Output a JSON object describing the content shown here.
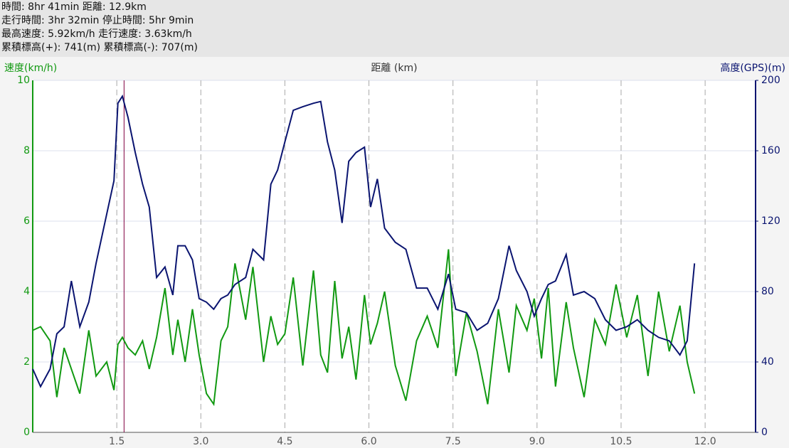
{
  "chart_data": {
    "type": "line",
    "summary": [
      "時間: 8hr 41min 距離: 12.9km",
      "走行時間: 3hr 32min 停止時間: 5hr 9min",
      "最高速度: 5.92km/h 走行速度: 3.63km/h",
      "累積標高(+): 741(m) 累積標高(-): 707(m)"
    ],
    "xlabel": "距離 (km)",
    "ylabel": "速度(km/h)",
    "y2label": "高度(GPS)(m)",
    "xlim": [
      0,
      12.9
    ],
    "xticks": [
      1.5,
      {
        "value": 3,
        "label": "3.0"
      },
      4.5,
      {
        "value": 6,
        "label": "6.0"
      },
      7.5,
      {
        "value": 9,
        "label": "9.0"
      },
      10.5,
      {
        "value": 12,
        "label": "12.0"
      }
    ],
    "ylim": [
      0,
      10
    ],
    "yticks": [
      0,
      2,
      4,
      6,
      8,
      10
    ],
    "y2lim": [
      0,
      200
    ],
    "y2ticks": [
      0,
      40,
      80,
      120,
      160,
      200
    ],
    "grid": true,
    "marker_x": 1.63,
    "marker_color": "#800040",
    "x": [
      0.0,
      0.14,
      0.31,
      0.43,
      0.56,
      0.69,
      0.84,
      1.0,
      1.13,
      1.32,
      1.45,
      1.52,
      1.6,
      1.7,
      1.83,
      1.96,
      2.08,
      2.21,
      2.36,
      2.5,
      2.59,
      2.72,
      2.85,
      2.97,
      3.1,
      3.23,
      3.36,
      3.48,
      3.61,
      3.8,
      3.93,
      4.12,
      4.25,
      4.37,
      4.5,
      4.65,
      4.82,
      5.01,
      5.14,
      5.26,
      5.39,
      5.52,
      5.64,
      5.77,
      5.92,
      6.03,
      6.15,
      6.28,
      6.47,
      6.66,
      6.85,
      7.04,
      7.23,
      7.42,
      7.55,
      7.74,
      7.93,
      8.12,
      8.31,
      8.5,
      8.63,
      8.82,
      8.95,
      9.08,
      9.2,
      9.33,
      9.52,
      9.65,
      9.84,
      10.03,
      10.22,
      10.41,
      10.6,
      10.79,
      10.98,
      11.17,
      11.36,
      11.55,
      11.68,
      11.81
    ],
    "series": [
      {
        "name": "速度",
        "color": "#119911",
        "values": [
          2.9,
          3.0,
          2.6,
          1.0,
          2.4,
          1.8,
          1.1,
          2.9,
          1.6,
          2.0,
          1.2,
          2.5,
          2.7,
          2.4,
          2.2,
          2.6,
          1.8,
          2.7,
          4.1,
          2.2,
          3.2,
          2.0,
          3.5,
          2.2,
          1.1,
          0.8,
          2.6,
          3.0,
          4.8,
          3.2,
          4.7,
          2.0,
          3.3,
          2.5,
          2.8,
          4.4,
          1.9,
          4.6,
          2.2,
          1.7,
          4.3,
          2.1,
          3.0,
          1.5,
          3.9,
          2.5,
          3.1,
          4.0,
          1.9,
          0.9,
          2.6,
          3.3,
          2.4,
          5.2,
          1.6,
          3.4,
          2.3,
          0.8,
          3.5,
          1.7,
          3.6,
          2.9,
          3.8,
          2.1,
          4.1,
          1.3,
          3.7,
          2.4,
          1.0,
          3.2,
          2.5,
          4.2,
          2.7,
          3.9,
          1.6,
          4.0,
          2.3,
          3.6,
          2.0,
          1.1
        ]
      },
      {
        "name": "高度",
        "color": "#0a1470",
        "axis": "y2",
        "values": [
          36,
          26,
          36,
          56,
          60,
          86,
          60,
          74,
          96,
          124,
          143,
          187,
          191,
          179,
          159,
          141,
          128,
          88,
          94,
          78,
          106,
          106,
          98,
          76,
          74,
          70,
          76,
          78,
          84,
          88,
          104,
          98,
          141,
          149,
          165,
          183,
          185,
          187,
          188,
          165,
          149,
          119,
          154,
          159,
          162,
          128,
          144,
          116,
          108,
          104,
          82,
          82,
          70,
          90,
          70,
          68,
          58,
          62,
          76,
          106,
          92,
          80,
          66,
          76,
          84,
          86,
          101,
          78,
          80,
          76,
          64,
          58,
          60,
          64,
          58,
          54,
          52,
          44,
          52,
          96
        ]
      }
    ]
  }
}
